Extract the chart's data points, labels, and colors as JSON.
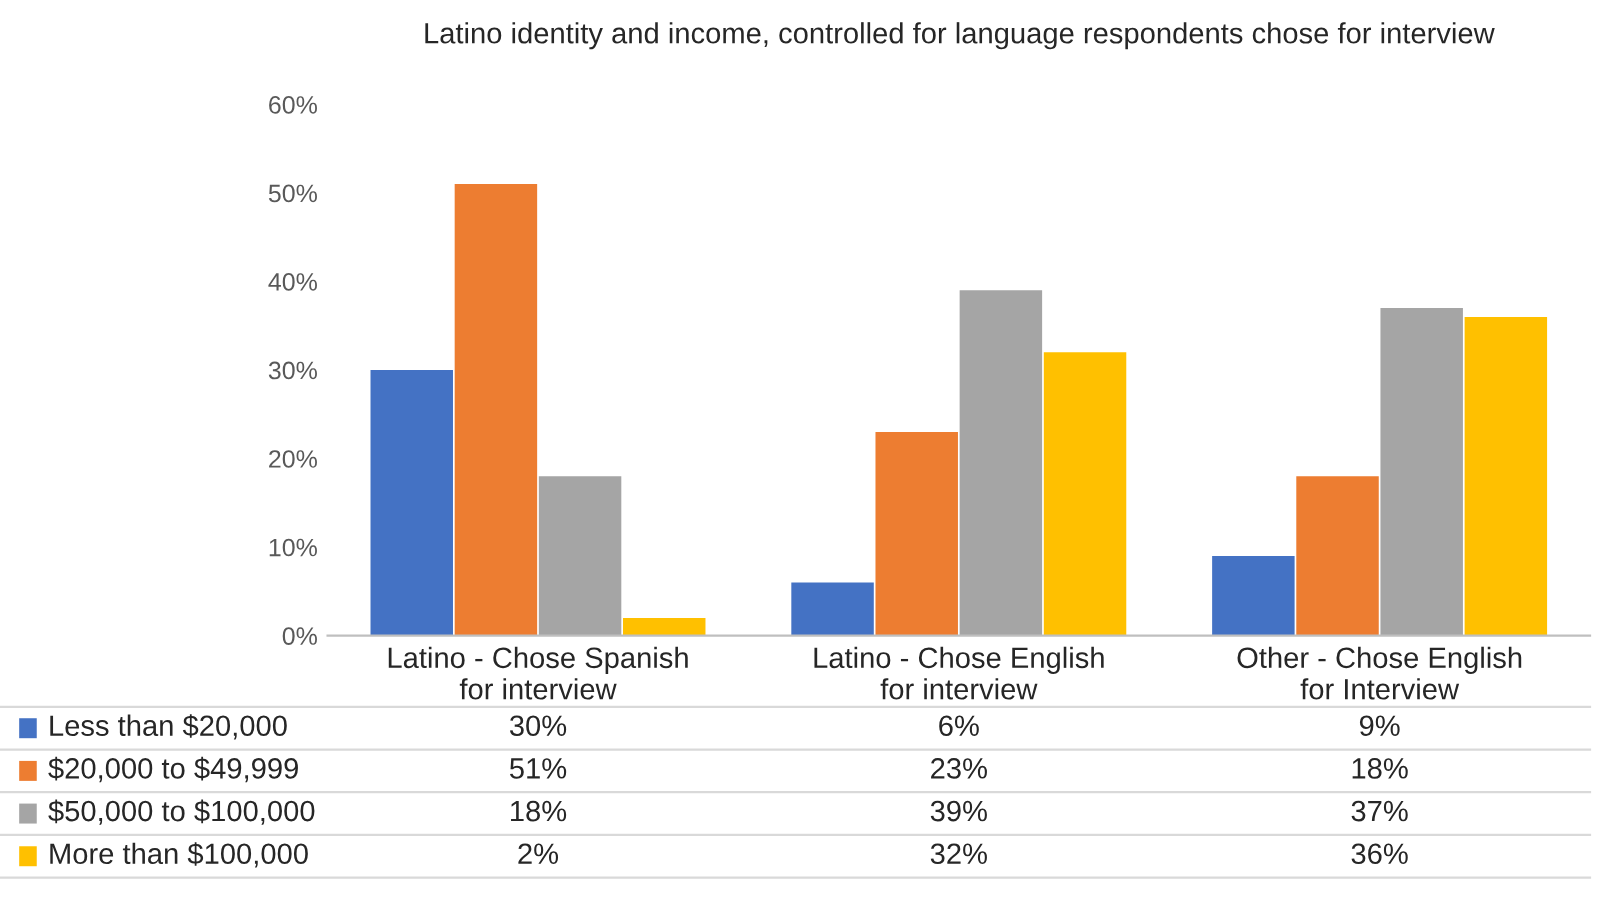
{
  "chart_data": {
    "type": "bar",
    "title": "Latino identity and income, controlled for language respondents chose for interview",
    "categories": [
      "Latino - Chose Spanish\nfor interview",
      "Latino - Chose English\nfor interview",
      "Other - Chose English\nfor Interview"
    ],
    "series": [
      {
        "name": "Less than $20,000",
        "color": "#4472c4",
        "values": [
          30,
          6,
          9
        ],
        "value_labels": [
          "30%",
          "6%",
          "9%"
        ]
      },
      {
        "name": "$20,000 to $49,999",
        "color": "#ed7d31",
        "values": [
          51,
          23,
          18
        ],
        "value_labels": [
          "51%",
          "23%",
          "18%"
        ]
      },
      {
        "name": "$50,000 to $100,000",
        "color": "#a5a5a5",
        "values": [
          18,
          39,
          37
        ],
        "value_labels": [
          "18%",
          "39%",
          "37%"
        ]
      },
      {
        "name": "More than $100,000",
        "color": "#ffc000",
        "values": [
          2,
          32,
          36
        ],
        "value_labels": [
          "2%",
          "32%",
          "36%"
        ]
      }
    ],
    "ylim": [
      0,
      60
    ],
    "yticks": [
      {
        "value": 0,
        "label": "0%"
      },
      {
        "value": 10,
        "label": "10%"
      },
      {
        "value": 20,
        "label": "20%"
      },
      {
        "value": 30,
        "label": "30%"
      },
      {
        "value": 40,
        "label": "40%"
      },
      {
        "value": 50,
        "label": "50%"
      },
      {
        "value": 60,
        "label": "60%"
      }
    ],
    "legend": "bottom"
  }
}
